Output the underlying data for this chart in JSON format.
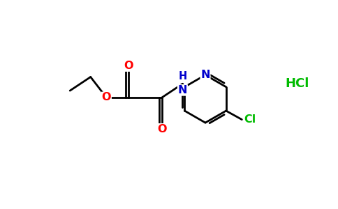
{
  "background_color": "#ffffff",
  "bond_color": "#000000",
  "oxygen_color": "#ff0000",
  "nitrogen_color": "#0000cc",
  "chlorine_color": "#00bb00",
  "line_width": 2.0,
  "figsize": [
    4.84,
    3.0
  ],
  "dpi": 100,
  "xlim": [
    0,
    9.5
  ],
  "ylim": [
    0,
    5.8
  ]
}
